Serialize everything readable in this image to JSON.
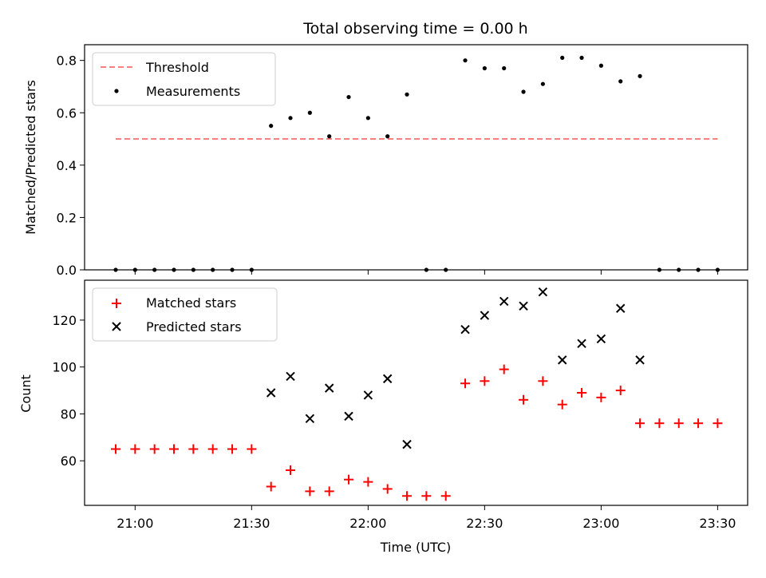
{
  "chart_data": [
    {
      "type": "scatter",
      "title": "Total observing time = 0.00 h",
      "xlabel": "",
      "ylabel": "Matched/Predicted stars",
      "ylim": [
        0,
        0.86
      ],
      "yticks": [
        "0.0",
        "0.2",
        "0.4",
        "0.6",
        "0.8"
      ],
      "ytick_values": [
        0,
        0.2,
        0.4,
        0.6,
        0.8
      ],
      "legend_position": "upper left",
      "threshold": {
        "name": "Threshold",
        "value": 0.5,
        "x_start": "20:55",
        "x_end": "23:30",
        "color": "#ff7f7f"
      },
      "series": [
        {
          "name": "Measurements",
          "color": "#000000",
          "x": [
            "20:55",
            "21:00",
            "21:05",
            "21:10",
            "21:15",
            "21:20",
            "21:25",
            "21:30",
            "21:35",
            "21:40",
            "21:45",
            "21:50",
            "21:55",
            "22:00",
            "22:05",
            "22:10",
            "22:15",
            "22:20",
            "22:25",
            "22:30",
            "22:35",
            "22:40",
            "22:45",
            "22:50",
            "22:55",
            "23:00",
            "23:05",
            "23:10",
            "23:15",
            "23:20",
            "23:25",
            "23:30"
          ],
          "y": [
            0,
            0,
            0,
            0,
            0,
            0,
            0,
            0,
            0.55,
            0.58,
            0.6,
            0.51,
            0.66,
            0.58,
            0.51,
            0.67,
            0,
            0,
            0.8,
            0.77,
            0.77,
            0.68,
            0.71,
            0.81,
            0.81,
            0.78,
            0.72,
            0.74,
            0,
            0,
            0,
            0
          ]
        }
      ]
    },
    {
      "type": "scatter",
      "xlabel": "Time (UTC)",
      "ylabel": "Count",
      "ylim": [
        41,
        137
      ],
      "yticks": [
        "60",
        "80",
        "100",
        "120"
      ],
      "ytick_values": [
        60,
        80,
        100,
        120
      ],
      "xticks": [
        "21:00",
        "21:30",
        "22:00",
        "22:30",
        "23:00",
        "23:30"
      ],
      "legend_position": "upper left",
      "series": [
        {
          "name": "Matched stars",
          "marker": "+",
          "color": "#ff0000",
          "x": [
            "20:55",
            "21:00",
            "21:05",
            "21:10",
            "21:15",
            "21:20",
            "21:25",
            "21:30",
            "21:35",
            "21:40",
            "21:45",
            "21:50",
            "21:55",
            "22:00",
            "22:05",
            "22:10",
            "22:15",
            "22:20",
            "22:25",
            "22:30",
            "22:35",
            "22:40",
            "22:45",
            "22:50",
            "22:55",
            "23:00",
            "23:05",
            "23:10",
            "23:15",
            "23:20",
            "23:25",
            "23:30"
          ],
          "y": [
            65,
            65,
            65,
            65,
            65,
            65,
            65,
            65,
            49,
            56,
            47,
            47,
            52,
            51,
            48,
            45,
            45,
            45,
            93,
            94,
            99,
            86,
            94,
            84,
            89,
            87,
            90,
            76,
            76,
            76,
            76,
            76
          ]
        },
        {
          "name": "Predicted stars",
          "marker": "x",
          "color": "#000000",
          "x": [
            "21:35",
            "21:40",
            "21:45",
            "21:50",
            "21:55",
            "22:00",
            "22:05",
            "22:10",
            "22:25",
            "22:30",
            "22:35",
            "22:40",
            "22:45",
            "22:50",
            "22:55",
            "23:00",
            "23:05",
            "23:10"
          ],
          "y": [
            89,
            96,
            78,
            91,
            79,
            88,
            95,
            67,
            116,
            122,
            128,
            126,
            132,
            103,
            110,
            112,
            125,
            103
          ]
        }
      ]
    }
  ]
}
